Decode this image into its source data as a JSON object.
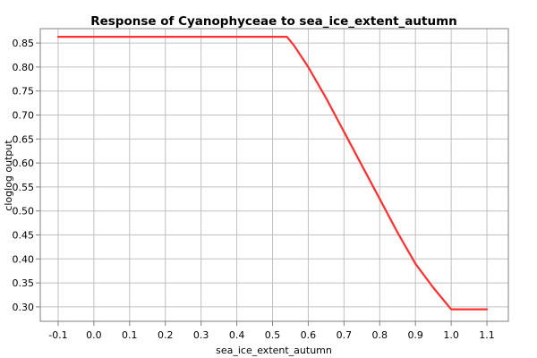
{
  "chart_data": {
    "type": "line",
    "title": "Response of Cyanophyceae to sea_ice_extent_autumn",
    "xlabel": "sea_ice_extent_autumn",
    "ylabel": "cloglog output",
    "xlim": [
      -0.15,
      1.16
    ],
    "ylim": [
      0.27,
      0.88
    ],
    "x_ticks": [
      -0.1,
      0.0,
      0.1,
      0.2,
      0.3,
      0.4,
      0.5,
      0.6,
      0.7,
      0.8,
      0.9,
      1.0,
      1.1
    ],
    "x_tick_labels": [
      "-0.1",
      "0.0",
      "0.1",
      "0.2",
      "0.3",
      "0.4",
      "0.5",
      "0.6",
      "0.7",
      "0.8",
      "0.9",
      "1.0",
      "1.1"
    ],
    "y_ticks": [
      0.3,
      0.35,
      0.4,
      0.45,
      0.5,
      0.55,
      0.6,
      0.65,
      0.7,
      0.75,
      0.8,
      0.85
    ],
    "y_tick_labels": [
      "0.30",
      "0.35",
      "0.40",
      "0.45",
      "0.50",
      "0.55",
      "0.60",
      "0.65",
      "0.70",
      "0.75",
      "0.80",
      "0.85"
    ],
    "grid": true,
    "series": [
      {
        "color": "#ff3030",
        "x": [
          -0.1,
          0.54,
          0.56,
          0.6,
          0.65,
          0.7,
          0.75,
          0.8,
          0.85,
          0.9,
          0.95,
          1.0,
          1.1
        ],
        "y": [
          0.863,
          0.863,
          0.845,
          0.8,
          0.735,
          0.665,
          0.595,
          0.525,
          0.455,
          0.39,
          0.34,
          0.295,
          0.295
        ]
      }
    ]
  }
}
